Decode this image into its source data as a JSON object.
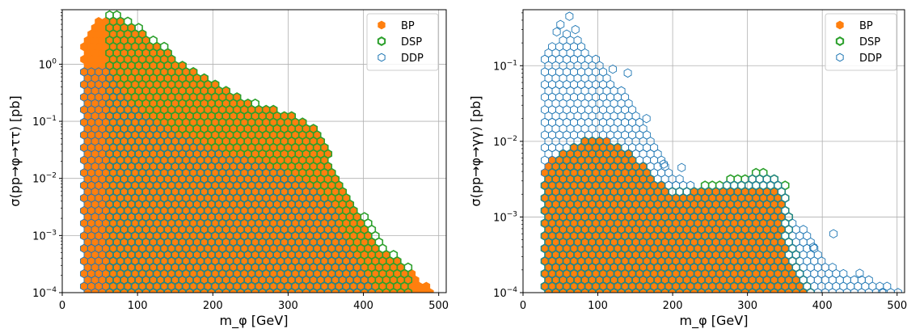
{
  "chart_data": [
    {
      "type": "scatter",
      "title": "",
      "xlabel": "m_φ [GeV]",
      "ylabel": "σ(pp→φ→ττ) [pb]",
      "xlim": [
        0,
        510
      ],
      "ylim": [
        0.0001,
        9
      ],
      "yscale": "log",
      "grid": true,
      "legend_position": "top-right",
      "x_ticks": [
        0,
        100,
        200,
        300,
        400,
        500
      ],
      "y_ticks": [
        0.0001,
        0.001,
        0.01,
        0.1,
        1
      ],
      "series": [
        {
          "name": "BP",
          "color": "#ff7f0e",
          "marker": "hexagon-filled",
          "upper_envelope": [
            [
              27,
              3.0
            ],
            [
              40,
              3.5
            ],
            [
              50,
              7.0
            ],
            [
              62,
              7.0
            ],
            [
              75,
              6.0
            ],
            [
              100,
              4.5
            ],
            [
              130,
              2.0
            ],
            [
              160,
              1.0
            ],
            [
              200,
              0.5
            ],
            [
              250,
              0.2
            ],
            [
              300,
              0.14
            ],
            [
              330,
              0.09
            ],
            [
              350,
              0.035
            ],
            [
              380,
              0.004
            ],
            [
              410,
              0.0009
            ],
            [
              440,
              0.0004
            ],
            [
              470,
              0.0002
            ],
            [
              492,
              0.0001
            ]
          ],
          "lower_bound": 0.0001
        },
        {
          "name": "DSP",
          "color": "#2ca02c",
          "marker": "hexagon-outline",
          "upper_envelope": [
            [
              60,
              8.0
            ],
            [
              80,
              7.0
            ],
            [
              100,
              5.0
            ],
            [
              120,
              3.0
            ],
            [
              140,
              1.8
            ],
            [
              160,
              1.0
            ],
            [
              180,
              0.7
            ],
            [
              200,
              0.5
            ],
            [
              240,
              0.25
            ],
            [
              280,
              0.18
            ],
            [
              300,
              0.14
            ],
            [
              330,
              0.09
            ],
            [
              350,
              0.04
            ],
            [
              358,
              0.015
            ],
            [
              380,
              0.004
            ],
            [
              400,
              0.0025
            ],
            [
              420,
              0.001
            ],
            [
              440,
              0.0005
            ],
            [
              460,
              0.0003
            ]
          ],
          "lower_bound": 0.0001
        },
        {
          "name": "DDP",
          "color": "#1f77b4",
          "marker": "hexagon-outline",
          "upper_envelope": [
            [
              27,
              0.8
            ],
            [
              40,
              0.9
            ],
            [
              60,
              0.8
            ],
            [
              80,
              0.3
            ],
            [
              100,
              0.15
            ],
            [
              150,
              0.06
            ],
            [
              200,
              0.03
            ],
            [
              250,
              0.02
            ],
            [
              300,
              0.012
            ],
            [
              340,
              0.006
            ],
            [
              358,
              0.003
            ],
            [
              380,
              0.0007
            ],
            [
              400,
              0.00025
            ],
            [
              415,
              0.0001
            ]
          ],
          "lower_bound": 0.0001
        }
      ]
    },
    {
      "type": "scatter",
      "title": "",
      "xlabel": "m_φ [GeV]",
      "ylabel": "σ(pp→φ→γγ) [pb]",
      "xlim": [
        0,
        510
      ],
      "ylim": [
        0.0001,
        0.55
      ],
      "yscale": "log",
      "grid": true,
      "legend_position": "top-right",
      "x_ticks": [
        0,
        100,
        200,
        300,
        400,
        500
      ],
      "y_ticks": [
        0.0001,
        0.001,
        0.01,
        0.1
      ],
      "series": [
        {
          "name": "BP",
          "color": "#ff7f0e",
          "marker": "hexagon-filled",
          "upper_envelope": [
            [
              27,
              0.004
            ],
            [
              40,
              0.006
            ],
            [
              60,
              0.008
            ],
            [
              80,
              0.011
            ],
            [
              100,
              0.012
            ],
            [
              120,
              0.009
            ],
            [
              140,
              0.007
            ],
            [
              160,
              0.005
            ],
            [
              180,
              0.003
            ],
            [
              200,
              0.002
            ],
            [
              230,
              0.0022
            ],
            [
              260,
              0.0023
            ],
            [
              290,
              0.0024
            ],
            [
              320,
              0.0025
            ],
            [
              345,
              0.0022
            ],
            [
              350,
              0.0004
            ],
            [
              360,
              0.0002
            ],
            [
              375,
              0.0001
            ]
          ],
          "lower_bound": 0.0001
        },
        {
          "name": "DSP",
          "color": "#2ca02c",
          "marker": "hexagon-outline",
          "upper_envelope": [
            [
              27,
              0.003
            ],
            [
              40,
              0.005
            ],
            [
              60,
              0.008
            ],
            [
              80,
              0.01
            ],
            [
              100,
              0.011
            ],
            [
              120,
              0.009
            ],
            [
              140,
              0.007
            ],
            [
              160,
              0.005
            ],
            [
              180,
              0.003
            ],
            [
              200,
              0.0024
            ],
            [
              230,
              0.0025
            ],
            [
              260,
              0.003
            ],
            [
              290,
              0.0035
            ],
            [
              310,
              0.004
            ],
            [
              340,
              0.0037
            ],
            [
              352,
              0.0025
            ],
            [
              360,
              0.0005
            ],
            [
              372,
              0.0002
            ],
            [
              385,
              0.0001
            ]
          ],
          "lower_bound": 0.0001
        },
        {
          "name": "DDP",
          "color": "#1f77b4",
          "marker": "hexagon-outline",
          "upper_envelope": [
            [
              27,
              0.13
            ],
            [
              40,
              0.2
            ],
            [
              60,
              0.28
            ],
            [
              80,
              0.2
            ],
            [
              100,
              0.12
            ],
            [
              120,
              0.06
            ],
            [
              140,
              0.04
            ],
            [
              160,
              0.02
            ],
            [
              180,
              0.008
            ],
            [
              200,
              0.004
            ],
            [
              230,
              0.0025
            ],
            [
              260,
              0.0025
            ],
            [
              290,
              0.003
            ],
            [
              320,
              0.0035
            ],
            [
              345,
              0.003
            ],
            [
              360,
              0.001
            ],
            [
              380,
              0.0006
            ],
            [
              400,
              0.0003
            ],
            [
              430,
              0.00018
            ],
            [
              460,
              0.00015
            ],
            [
              490,
              0.00013
            ],
            [
              505,
              0.0001
            ]
          ],
          "lower_bound": 0.0001,
          "outliers": [
            [
              62,
              0.45
            ],
            [
              50,
              0.35
            ],
            [
              45,
              0.28
            ],
            [
              70,
              0.3
            ],
            [
              120,
              0.09
            ],
            [
              140,
              0.08
            ],
            [
              165,
              0.02
            ],
            [
              188,
              0.005
            ],
            [
              212,
              0.0045
            ],
            [
              388,
              0.0004
            ],
            [
              415,
              0.0006
            ],
            [
              450,
              0.00018
            ],
            [
              480,
              0.0001
            ]
          ]
        }
      ]
    }
  ]
}
